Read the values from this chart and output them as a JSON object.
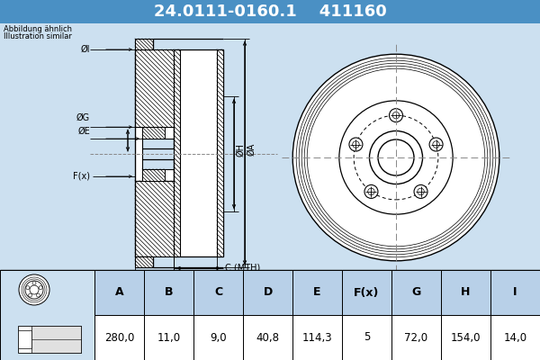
{
  "title_part": "24.0111-0160.1",
  "title_code": "411160",
  "header_bg": "#4a90c4",
  "header_text_color": "#ffffff",
  "body_bg": "#cce0f0",
  "note_line1": "Abbildung ähnlich",
  "note_line2": "Illustration similar",
  "table_headers": [
    "A",
    "B",
    "C",
    "D",
    "E",
    "F(x)",
    "G",
    "H",
    "I"
  ],
  "table_values": [
    "280,0",
    "11,0",
    "9,0",
    "40,8",
    "114,3",
    "5",
    "72,0",
    "154,0",
    "14,0"
  ],
  "table_header_bg": "#b8d0e8",
  "table_value_bg": "#ffffff",
  "table_image_bg": "#cce0f0",
  "drawing_bg": "#cce0f0",
  "line_color": "#000000",
  "hatch_color": "#000000",
  "dim_color": "#000000",
  "centerline_color": "#888888"
}
